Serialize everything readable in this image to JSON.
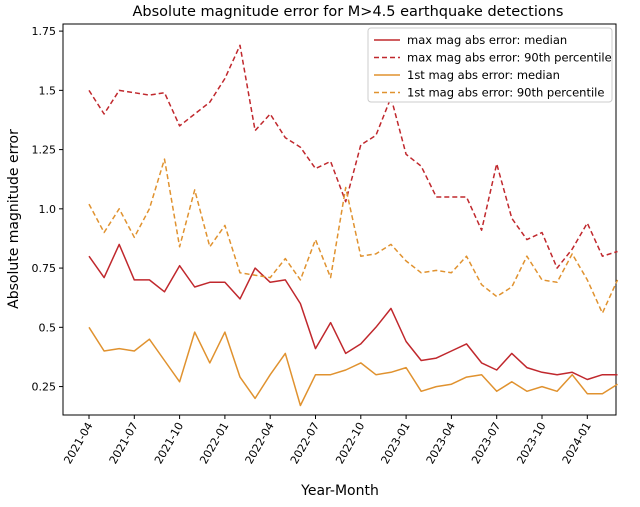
{
  "chart_data": {
    "type": "line",
    "title": "Absolute magnitude error for M>4.5 earthquake detections",
    "xlabel": "Year-Month",
    "ylabel": "Absolute magnitude error",
    "x": [
      "2021-04",
      "2021-05",
      "2021-06",
      "2021-07",
      "2021-08",
      "2021-09",
      "2021-10",
      "2021-11",
      "2021-12",
      "2022-01",
      "2022-02",
      "2022-03",
      "2022-04",
      "2022-05",
      "2022-06",
      "2022-07",
      "2022-08",
      "2022-09",
      "2022-10",
      "2022-11",
      "2022-12",
      "2023-01",
      "2023-02",
      "2023-03",
      "2023-04",
      "2023-05",
      "2023-06",
      "2023-07",
      "2023-08",
      "2023-09",
      "2023-10",
      "2023-11",
      "2023-12",
      "2024-01",
      "2024-02",
      "2024-03"
    ],
    "xticks": [
      "2021-04",
      "2021-07",
      "2021-10",
      "2022-01",
      "2022-04",
      "2022-07",
      "2022-10",
      "2023-01",
      "2023-04",
      "2023-07",
      "2023-10",
      "2024-01"
    ],
    "yticks": [
      0.25,
      0.5,
      0.75,
      1.0,
      1.25,
      1.5,
      1.75
    ],
    "ytick_labels": [
      "0.25",
      "0.5",
      "0.75",
      "1.0",
      "1.25",
      "1.5",
      "1.75"
    ],
    "ylim": [
      0.13,
      1.78
    ],
    "grid": false,
    "legend_position": "top-right",
    "series": [
      {
        "name": "max mag abs error: median",
        "color": "#c0282d",
        "dash": "solid",
        "values": [
          0.8,
          0.71,
          0.85,
          0.7,
          0.7,
          0.65,
          0.76,
          0.67,
          0.69,
          0.69,
          0.62,
          0.75,
          0.69,
          0.7,
          0.6,
          0.41,
          0.52,
          0.39,
          0.43,
          0.5,
          0.58,
          0.44,
          0.36,
          0.37,
          0.4,
          0.43,
          0.35,
          0.32,
          0.39,
          0.33,
          0.31,
          0.3,
          0.31,
          0.28,
          0.3,
          0.3
        ]
      },
      {
        "name": "max mag abs error: 90th percentile",
        "color": "#c0282d",
        "dash": "dashed",
        "values": [
          1.5,
          1.4,
          1.5,
          1.49,
          1.48,
          1.49,
          1.35,
          1.4,
          1.45,
          1.55,
          1.69,
          1.33,
          1.4,
          1.3,
          1.26,
          1.17,
          1.2,
          1.03,
          1.27,
          1.31,
          1.47,
          1.23,
          1.18,
          1.05,
          1.05,
          1.05,
          0.91,
          1.19,
          0.96,
          0.87,
          0.9,
          0.75,
          0.83,
          0.94,
          0.8,
          0.82
        ]
      },
      {
        "name": "1st mag abs error: median",
        "color": "#e0922f",
        "dash": "solid",
        "values": [
          0.5,
          0.4,
          0.41,
          0.4,
          0.45,
          0.36,
          0.27,
          0.48,
          0.35,
          0.48,
          0.29,
          0.2,
          0.3,
          0.39,
          0.17,
          0.3,
          0.3,
          0.32,
          0.35,
          0.3,
          0.31,
          0.33,
          0.23,
          0.25,
          0.26,
          0.29,
          0.3,
          0.23,
          0.27,
          0.23,
          0.25,
          0.23,
          0.3,
          0.22,
          0.22,
          0.26
        ]
      },
      {
        "name": "1st mag abs error: 90th percentile",
        "color": "#e0922f",
        "dash": "dashed",
        "values": [
          1.02,
          0.9,
          1.0,
          0.88,
          1.0,
          1.21,
          0.84,
          1.08,
          0.84,
          0.93,
          0.73,
          0.72,
          0.71,
          0.79,
          0.7,
          0.87,
          0.71,
          1.09,
          0.8,
          0.81,
          0.85,
          0.78,
          0.73,
          0.74,
          0.73,
          0.8,
          0.68,
          0.63,
          0.67,
          0.8,
          0.7,
          0.69,
          0.81,
          0.7,
          0.56,
          0.7
        ]
      }
    ]
  }
}
